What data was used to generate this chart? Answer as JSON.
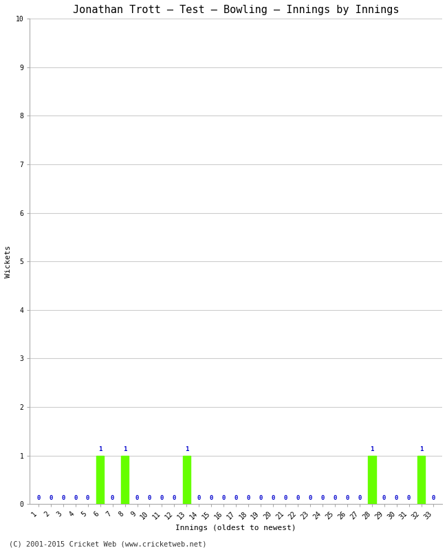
{
  "title": "Jonathan Trott – Test – Bowling – Innings by Innings",
  "xlabel": "Innings (oldest to newest)",
  "ylabel": "Wickets",
  "background_color": "#ffffff",
  "plot_background_color": "#ffffff",
  "grid_color": "#cccccc",
  "innings": [
    1,
    2,
    3,
    4,
    5,
    6,
    7,
    8,
    9,
    10,
    11,
    12,
    13,
    14,
    15,
    16,
    17,
    18,
    19,
    20,
    21,
    22,
    23,
    24,
    25,
    26,
    27,
    28,
    29,
    30,
    31,
    32,
    33
  ],
  "wickets": [
    0,
    0,
    0,
    0,
    0,
    1,
    0,
    1,
    0,
    0,
    0,
    0,
    1,
    0,
    0,
    0,
    0,
    0,
    0,
    0,
    0,
    0,
    0,
    0,
    0,
    0,
    0,
    1,
    0,
    0,
    0,
    1,
    0
  ],
  "bar_color_one": "#66ff00",
  "label_color": "#0000cc",
  "ylim": [
    0,
    10
  ],
  "yticks": [
    0,
    1,
    2,
    3,
    4,
    5,
    6,
    7,
    8,
    9,
    10
  ],
  "title_fontsize": 11,
  "axis_fontsize": 8,
  "tick_fontsize": 7,
  "label_fontsize": 6.5,
  "footer": "(C) 2001-2015 Cricket Web (www.cricketweb.net)"
}
